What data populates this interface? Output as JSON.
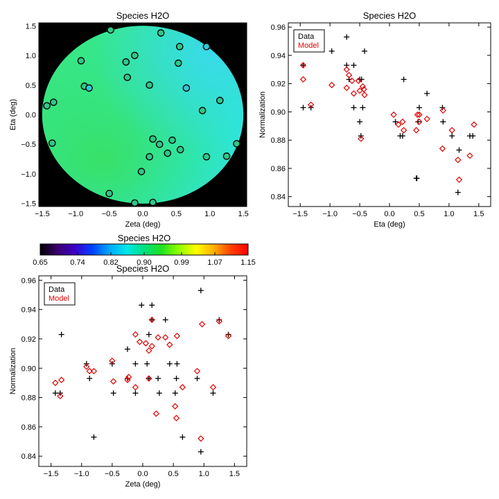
{
  "colors": {
    "data_marker": "#000000",
    "model_marker": "#e00000",
    "map_outside": "#000000"
  },
  "chart_data": [
    {
      "id": "panel1",
      "type": "heatmap",
      "title": "Species H2O",
      "xlabel": "Zeta (deg)",
      "ylabel": "Eta (deg)",
      "xlim": [
        -1.55,
        1.55
      ],
      "ylim": [
        -1.55,
        1.55
      ],
      "xticks": [
        -1.5,
        -1.0,
        -0.5,
        0.0,
        0.5,
        1.0,
        1.5
      ],
      "xtick_labels": [
        "−1.5",
        "−1.0",
        "−0.5",
        "0.0",
        "0.5",
        "1.0",
        "1.5"
      ],
      "yticks": [
        -1.5,
        -1.0,
        -0.5,
        0.0,
        0.5,
        1.0,
        1.5
      ],
      "ytick_labels": [
        "−1.5",
        "−1.0",
        "−0.5",
        "0.0",
        "0.5",
        "1.0",
        "1.5"
      ],
      "field_radius": 1.5,
      "points": [
        {
          "x": -0.48,
          "y": 1.43,
          "c": "#2ec88a"
        },
        {
          "x": 0.27,
          "y": 1.38,
          "c": "#2ec88a"
        },
        {
          "x": -0.92,
          "y": 0.91,
          "c": "#2ec88a"
        },
        {
          "x": -0.25,
          "y": 0.89,
          "c": "#2ec88a"
        },
        {
          "x": -0.12,
          "y": 1.0,
          "c": "#2ec88a"
        },
        {
          "x": 0.55,
          "y": 1.15,
          "c": "#2ec88a"
        },
        {
          "x": 0.95,
          "y": 1.15,
          "c": "#31c8d8"
        },
        {
          "x": 0.53,
          "y": 0.87,
          "c": "#2ec88a"
        },
        {
          "x": -0.87,
          "y": 0.48,
          "c": "#2ec88a"
        },
        {
          "x": -0.8,
          "y": 0.45,
          "c": "#31c8d8"
        },
        {
          "x": -0.23,
          "y": 0.63,
          "c": "#2ec88a"
        },
        {
          "x": 0.1,
          "y": 0.5,
          "c": "#2ec88a"
        },
        {
          "x": 0.65,
          "y": 0.45,
          "c": "#31c8d8"
        },
        {
          "x": -1.33,
          "y": 0.21,
          "c": "#2ec88a"
        },
        {
          "x": -1.43,
          "y": 0.15,
          "c": "#2ec88a"
        },
        {
          "x": 1.15,
          "y": 0.24,
          "c": "#2ec88a"
        },
        {
          "x": 0.89,
          "y": 0.07,
          "c": "#2ec88a"
        },
        {
          "x": -1.35,
          "y": -0.48,
          "c": "#2ec88a"
        },
        {
          "x": 0.15,
          "y": -0.41,
          "c": "#2ec88a"
        },
        {
          "x": 0.25,
          "y": -0.5,
          "c": "#2ec88a"
        },
        {
          "x": 0.44,
          "y": -0.43,
          "c": "#2ec88a"
        },
        {
          "x": 1.4,
          "y": -0.49,
          "c": "#2ec88a"
        },
        {
          "x": 0.56,
          "y": -0.59,
          "c": "#2ec88a"
        },
        {
          "x": 0.37,
          "y": -0.65,
          "c": "#2ec88a"
        },
        {
          "x": 0.1,
          "y": -0.71,
          "c": "#2ec88a"
        },
        {
          "x": 0.95,
          "y": -0.71,
          "c": "#2ec88a"
        },
        {
          "x": 1.25,
          "y": -0.7,
          "c": "#2ec88a"
        },
        {
          "x": -0.02,
          "y": -0.96,
          "c": "#2ec88a"
        },
        {
          "x": -0.5,
          "y": -1.33,
          "c": "#2ec88a"
        },
        {
          "x": -0.12,
          "y": -1.49,
          "c": "#2ec88a"
        },
        {
          "x": 0.15,
          "y": -1.48,
          "c": "#2ec88a"
        }
      ]
    },
    {
      "id": "panel2",
      "type": "scatter",
      "title": "Species H2O",
      "xlabel": "Eta (deg)",
      "ylabel": "Normalization",
      "xlim": [
        -1.7,
        1.7
      ],
      "ylim": [
        0.833,
        0.963
      ],
      "xticks": [
        -1.5,
        -1.0,
        -0.5,
        0.0,
        0.5,
        1.0,
        1.5
      ],
      "xtick_labels": [
        "−1.5",
        "−1.0",
        "−0.5",
        "0.0",
        "0.5",
        "1.0",
        "1.5"
      ],
      "yticks": [
        0.84,
        0.86,
        0.88,
        0.9,
        0.92,
        0.94,
        0.96
      ],
      "ytick_labels": [
        "0.84",
        "0.86",
        "0.88",
        "0.90",
        "0.92",
        "0.94",
        "0.96"
      ],
      "legend": {
        "position": "top-left",
        "entries": [
          "Data",
          "Model"
        ]
      },
      "series": [
        {
          "name": "Data",
          "marker": "plus",
          "x": [
            -1.45,
            -1.45,
            -1.32,
            -0.97,
            -0.72,
            -0.72,
            -0.68,
            -0.6,
            -0.6,
            -0.5,
            -0.5,
            -0.48,
            -0.47,
            -0.45,
            -0.42,
            0.1,
            0.18,
            0.22,
            0.24,
            0.45,
            0.46,
            0.48,
            0.5,
            0.63,
            0.89,
            0.9,
            1.05,
            1.15,
            1.17,
            1.35,
            1.4
          ],
          "y": [
            0.933,
            0.903,
            0.903,
            0.943,
            0.953,
            0.933,
            0.923,
            0.933,
            0.903,
            0.923,
            0.893,
            0.883,
            0.923,
            0.903,
            0.943,
            0.893,
            0.883,
            0.883,
            0.923,
            0.853,
            0.853,
            0.893,
            0.903,
            0.913,
            0.903,
            0.893,
            0.883,
            0.843,
            0.873,
            0.883,
            0.883
          ]
        },
        {
          "name": "Model",
          "marker": "diamond",
          "x": [
            -1.45,
            -1.45,
            -1.32,
            -0.97,
            -0.72,
            -0.72,
            -0.68,
            -0.63,
            -0.6,
            -0.52,
            -0.5,
            -0.48,
            -0.45,
            -0.43,
            -0.42,
            0.07,
            0.15,
            0.22,
            0.24,
            0.45,
            0.47,
            0.5,
            0.5,
            0.63,
            0.89,
            0.9,
            1.05,
            1.15,
            1.17,
            1.35,
            1.42
          ],
          "y": [
            0.933,
            0.923,
            0.905,
            0.919,
            0.93,
            0.917,
            0.926,
            0.922,
            0.913,
            0.922,
            0.915,
            0.881,
            0.918,
            0.916,
            0.912,
            0.898,
            0.891,
            0.893,
            0.887,
            0.887,
            0.898,
            0.898,
            0.893,
            0.895,
            0.874,
            0.901,
            0.887,
            0.866,
            0.852,
            0.869,
            0.891
          ]
        }
      ]
    },
    {
      "id": "colorbar",
      "type": "heatmap",
      "title": "Species H2O",
      "cmap_stops": [
        "#000000",
        "#3a006e",
        "#3d00c8",
        "#0040ff",
        "#00a8ff",
        "#00e8e8",
        "#00e080",
        "#20e020",
        "#90ff00",
        "#ffff00",
        "#ffb000",
        "#ff4000",
        "#ff0000"
      ],
      "range": [
        0.65,
        1.15
      ],
      "ticks": [
        0.65,
        0.74,
        0.82,
        0.9,
        0.99,
        1.07,
        1.15
      ],
      "tick_labels": [
        "0.65",
        "0.74",
        "0.82",
        "0.90",
        "0.99",
        "1.07",
        "1.15"
      ]
    },
    {
      "id": "panel3",
      "type": "scatter",
      "title": "Species H2O",
      "xlabel": "Zeta (deg)",
      "ylabel": "Normalization",
      "xlim": [
        -1.7,
        1.7
      ],
      "ylim": [
        0.833,
        0.963
      ],
      "xticks": [
        -1.5,
        -1.0,
        -0.5,
        0.0,
        0.5,
        1.0,
        1.5
      ],
      "xtick_labels": [
        "−1.5",
        "−1.0",
        "−0.5",
        "0.0",
        "0.5",
        "1.0",
        "1.5"
      ],
      "yticks": [
        0.84,
        0.86,
        0.88,
        0.9,
        0.92,
        0.94,
        0.96
      ],
      "ytick_labels": [
        "0.84",
        "0.86",
        "0.88",
        "0.90",
        "0.92",
        "0.94",
        "0.96"
      ],
      "legend": {
        "position": "top-left",
        "entries": [
          "Data",
          "Model"
        ]
      },
      "series": [
        {
          "name": "Data",
          "marker": "plus",
          "x": [
            -1.43,
            -1.35,
            -1.33,
            -0.92,
            -0.87,
            -0.8,
            -0.5,
            -0.48,
            -0.25,
            -0.25,
            -0.12,
            -0.12,
            -0.02,
            0.07,
            0.1,
            0.1,
            0.15,
            0.15,
            0.25,
            0.27,
            0.37,
            0.44,
            0.53,
            0.55,
            0.56,
            0.65,
            0.89,
            0.95,
            0.95,
            1.15,
            1.25,
            1.4
          ],
          "y": [
            0.883,
            0.883,
            0.923,
            0.903,
            0.893,
            0.853,
            0.903,
            0.883,
            0.913,
            0.893,
            0.903,
            0.883,
            0.943,
            0.903,
            0.923,
            0.893,
            0.943,
            0.933,
            0.893,
            0.883,
            0.933,
            0.903,
            0.883,
            0.893,
            0.903,
            0.853,
            0.893,
            0.843,
            0.953,
            0.883,
            0.933,
            0.923
          ]
        },
        {
          "name": "Model",
          "marker": "diamond",
          "x": [
            -1.43,
            -1.35,
            -1.33,
            -0.92,
            -0.87,
            -0.8,
            -0.5,
            -0.48,
            -0.25,
            -0.23,
            -0.12,
            -0.12,
            -0.05,
            0.05,
            0.1,
            0.1,
            0.15,
            0.15,
            0.22,
            0.25,
            0.37,
            0.44,
            0.53,
            0.55,
            0.56,
            0.65,
            0.89,
            0.95,
            0.97,
            1.15,
            1.25,
            1.4
          ],
          "y": [
            0.89,
            0.881,
            0.892,
            0.901,
            0.898,
            0.898,
            0.905,
            0.891,
            0.892,
            0.894,
            0.923,
            0.887,
            0.918,
            0.917,
            0.893,
            0.912,
            0.933,
            0.915,
            0.869,
            0.921,
            0.921,
            0.916,
            0.874,
            0.866,
            0.922,
            0.887,
            0.898,
            0.852,
            0.93,
            0.887,
            0.932,
            0.922
          ]
        }
      ]
    }
  ]
}
